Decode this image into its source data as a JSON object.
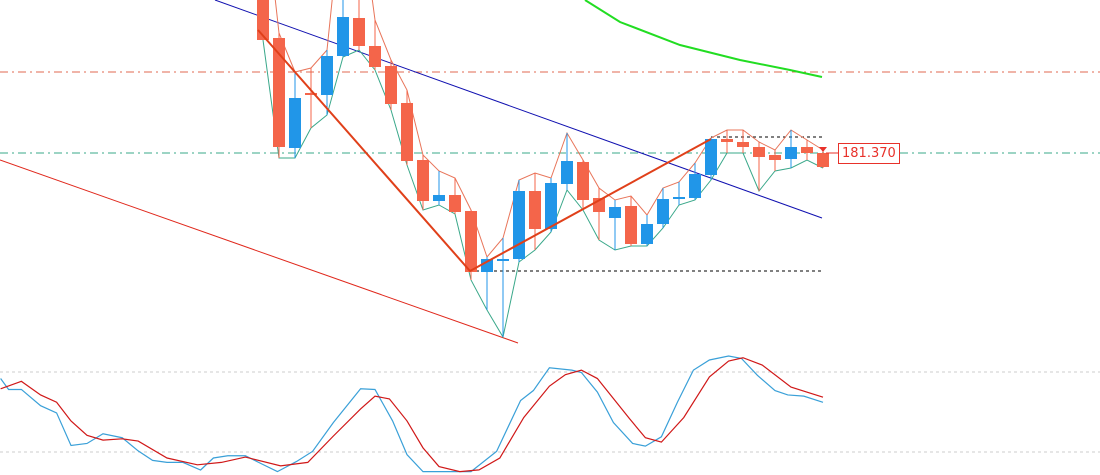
{
  "chart_data": {
    "type": "candlestick",
    "current_price_label": "181.370",
    "colors": {
      "bull": "#2196e8",
      "bear": "#f4654a",
      "ma": "#22dd22",
      "trendline": "#1010b0",
      "channel": "#e0281c",
      "zigzag": "#e0401a",
      "resistance": "#e06a50",
      "support": "#3aa88a",
      "osc_main": "#3aa0d8",
      "osc_signal": "#d01818"
    },
    "candles": [
      {
        "o": 183.95,
        "h": 184.0,
        "l": 182.5,
        "c": 182.5
      },
      {
        "o": 182.52,
        "h": 182.57,
        "l": 181.32,
        "c": 181.43
      },
      {
        "o": 181.42,
        "h": 182.18,
        "l": 181.32,
        "c": 181.92
      },
      {
        "o": 181.97,
        "h": 182.22,
        "l": 181.62,
        "c": 181.96
      },
      {
        "o": 181.95,
        "h": 182.4,
        "l": 181.75,
        "c": 182.34
      },
      {
        "o": 182.34,
        "h": 183.95,
        "l": 182.33,
        "c": 182.73
      },
      {
        "o": 182.72,
        "h": 183.9,
        "l": 182.4,
        "c": 182.44
      },
      {
        "o": 182.44,
        "h": 182.7,
        "l": 182.2,
        "c": 182.23
      },
      {
        "o": 182.24,
        "h": 182.3,
        "l": 181.8,
        "c": 181.86
      },
      {
        "o": 181.87,
        "h": 182.0,
        "l": 181.25,
        "c": 181.29
      },
      {
        "o": 181.3,
        "h": 181.35,
        "l": 180.8,
        "c": 180.89
      },
      {
        "o": 180.89,
        "h": 181.19,
        "l": 180.85,
        "c": 180.95
      },
      {
        "o": 180.95,
        "h": 181.12,
        "l": 180.76,
        "c": 180.78
      },
      {
        "o": 180.79,
        "h": 180.8,
        "l": 180.1,
        "c": 180.18
      },
      {
        "o": 180.18,
        "h": 180.33,
        "l": 179.8,
        "c": 180.31
      },
      {
        "o": 180.31,
        "h": 180.52,
        "l": 179.53,
        "c": 180.31
      },
      {
        "o": 180.31,
        "h": 181.1,
        "l": 180.28,
        "c": 180.99
      },
      {
        "o": 180.99,
        "h": 181.17,
        "l": 180.4,
        "c": 180.61
      },
      {
        "o": 180.61,
        "h": 181.12,
        "l": 180.58,
        "c": 181.07
      },
      {
        "o": 181.06,
        "h": 181.57,
        "l": 181.0,
        "c": 181.29
      },
      {
        "o": 181.28,
        "h": 181.3,
        "l": 180.8,
        "c": 180.9
      },
      {
        "o": 180.92,
        "h": 181.02,
        "l": 180.5,
        "c": 180.78
      },
      {
        "o": 180.72,
        "h": 180.9,
        "l": 180.4,
        "c": 180.83
      },
      {
        "o": 180.84,
        "h": 180.94,
        "l": 180.44,
        "c": 180.46
      },
      {
        "o": 180.46,
        "h": 180.75,
        "l": 180.44,
        "c": 180.66
      },
      {
        "o": 180.66,
        "h": 181.02,
        "l": 180.62,
        "c": 180.91
      },
      {
        "o": 180.91,
        "h": 181.08,
        "l": 180.85,
        "c": 180.93
      },
      {
        "o": 180.92,
        "h": 181.27,
        "l": 180.9,
        "c": 181.16
      },
      {
        "o": 181.15,
        "h": 181.52,
        "l": 181.1,
        "c": 181.51
      },
      {
        "o": 181.51,
        "h": 181.6,
        "l": 181.37,
        "c": 181.48
      },
      {
        "o": 181.48,
        "h": 181.6,
        "l": 181.37,
        "c": 181.43
      },
      {
        "o": 181.43,
        "h": 181.48,
        "l": 180.99,
        "c": 181.33
      },
      {
        "o": 181.35,
        "h": 181.4,
        "l": 181.19,
        "c": 181.3
      },
      {
        "o": 181.31,
        "h": 181.6,
        "l": 181.22,
        "c": 181.43
      },
      {
        "o": 181.43,
        "h": 181.5,
        "l": 181.3,
        "c": 181.37
      },
      {
        "o": 181.37,
        "h": 181.4,
        "l": 181.22,
        "c": 181.23
      }
    ],
    "oscillator": {
      "levels": [
        20,
        80
      ],
      "main": [
        [
          -16.4,
          75.1
        ],
        [
          -15.9,
          66.9
        ],
        [
          -15.1,
          66.9
        ],
        [
          -13.9,
          54.7
        ],
        [
          -12.9,
          49.3
        ],
        [
          -12,
          24.9
        ],
        [
          -11,
          26.4
        ],
        [
          -10,
          33.7
        ],
        [
          -8.8,
          30.7
        ],
        [
          -7.8,
          20.8
        ],
        [
          -6.9,
          13.7
        ],
        [
          -6,
          12.2
        ],
        [
          -5,
          12.2
        ],
        [
          -3.9,
          6.5
        ],
        [
          -3.1,
          15.5
        ],
        [
          -2.2,
          17.2
        ],
        [
          -1.1,
          17.2
        ],
        [
          -0.1,
          11.2
        ],
        [
          0.9,
          5.3
        ],
        [
          2.1,
          12.9
        ],
        [
          3.1,
          20.5
        ],
        [
          4.4,
          42.1
        ],
        [
          6.1,
          67.4
        ],
        [
          7,
          66.9
        ],
        [
          8.1,
          43.3
        ],
        [
          9,
          18
        ],
        [
          10,
          5.3
        ],
        [
          13,
          5.3
        ],
        [
          14.6,
          20.5
        ],
        [
          16.1,
          58.6
        ],
        [
          16.9,
          66.1
        ],
        [
          17.9,
          83.2
        ],
        [
          19.3,
          81.4
        ],
        [
          19.9,
          79.6
        ],
        [
          20.9,
          64.9
        ],
        [
          21.9,
          42.1
        ],
        [
          23.1,
          26.4
        ],
        [
          23.9,
          24.4
        ],
        [
          24.9,
          31.4
        ],
        [
          25.9,
          57.3
        ],
        [
          26.9,
          81.4
        ],
        [
          27.9,
          89
        ],
        [
          29.1,
          92
        ],
        [
          29.9,
          90.2
        ],
        [
          30.9,
          77.5
        ],
        [
          32,
          66.1
        ],
        [
          32.8,
          62.8
        ],
        [
          33.8,
          61.9
        ],
        [
          35,
          57.3
        ]
      ],
      "signal": [
        [
          -16.4,
          67.4
        ],
        [
          -15.1,
          73
        ],
        [
          -13.9,
          62.8
        ],
        [
          -12.9,
          57.3
        ],
        [
          -12,
          43.3
        ],
        [
          -11,
          32.5
        ],
        [
          -10,
          28.9
        ],
        [
          -8.8,
          29.9
        ],
        [
          -7.8,
          28.2
        ],
        [
          -6,
          15.5
        ],
        [
          -4.1,
          10.4
        ],
        [
          -2.6,
          12.2
        ],
        [
          -1.1,
          16.2
        ],
        [
          1.1,
          9.6
        ],
        [
          2.8,
          12.2
        ],
        [
          4.4,
          32
        ],
        [
          6.1,
          52.3
        ],
        [
          7,
          61.9
        ],
        [
          7.9,
          59.8
        ],
        [
          9,
          43.3
        ],
        [
          10,
          23.1
        ],
        [
          11,
          9.1
        ],
        [
          12.3,
          5.3
        ],
        [
          13.5,
          6.6
        ],
        [
          14.8,
          15.5
        ],
        [
          16.3,
          45.9
        ],
        [
          17.9,
          69.4
        ],
        [
          18.9,
          78
        ],
        [
          19.9,
          81.4
        ],
        [
          20.9,
          75.1
        ],
        [
          22.9,
          45.1
        ],
        [
          23.9,
          30.7
        ],
        [
          24.9,
          27.4
        ],
        [
          26.3,
          45.9
        ],
        [
          27.9,
          76.3
        ],
        [
          29.1,
          88.2
        ],
        [
          30,
          90.7
        ],
        [
          31.2,
          85.2
        ],
        [
          33,
          68.7
        ],
        [
          35,
          61.1
        ]
      ]
    }
  }
}
